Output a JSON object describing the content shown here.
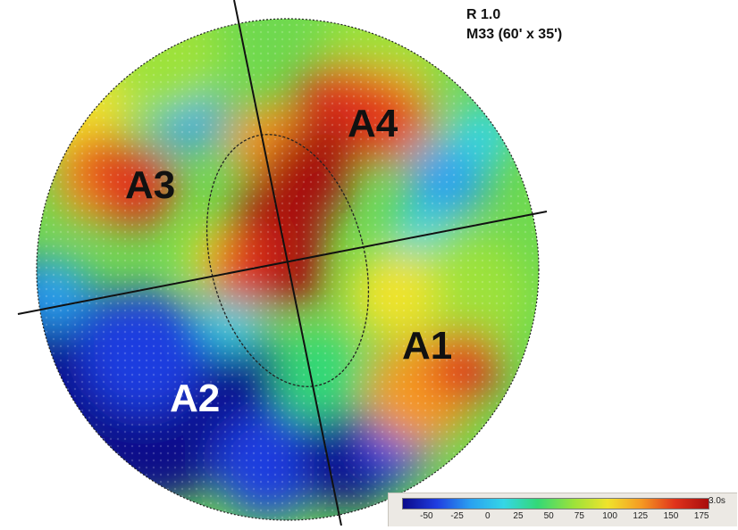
{
  "header": {
    "line1": "R 1.0",
    "line2": "M33 (60' x 35')"
  },
  "regions": [
    {
      "label": "A1",
      "color": "#111111"
    },
    {
      "label": "A2",
      "color": "#ffffff"
    },
    {
      "label": "A3",
      "color": "#111111"
    },
    {
      "label": "A4",
      "color": "#111111"
    }
  ],
  "colorbar": {
    "min": -70,
    "max": 180,
    "unit_label": "3.0s",
    "ticks": [
      "-50",
      "-25",
      "0",
      "25",
      "50",
      "75",
      "100",
      "125",
      "150",
      "175"
    ],
    "colormap": [
      "#0a0a8a",
      "#1f3de0",
      "#2aa0f0",
      "#35d6e6",
      "#33d877",
      "#9de23a",
      "#f0e32c",
      "#f59a23",
      "#e0331c",
      "#a80d0d"
    ]
  },
  "colors": {
    "background": "#ffffff",
    "lines": "#111111"
  }
}
